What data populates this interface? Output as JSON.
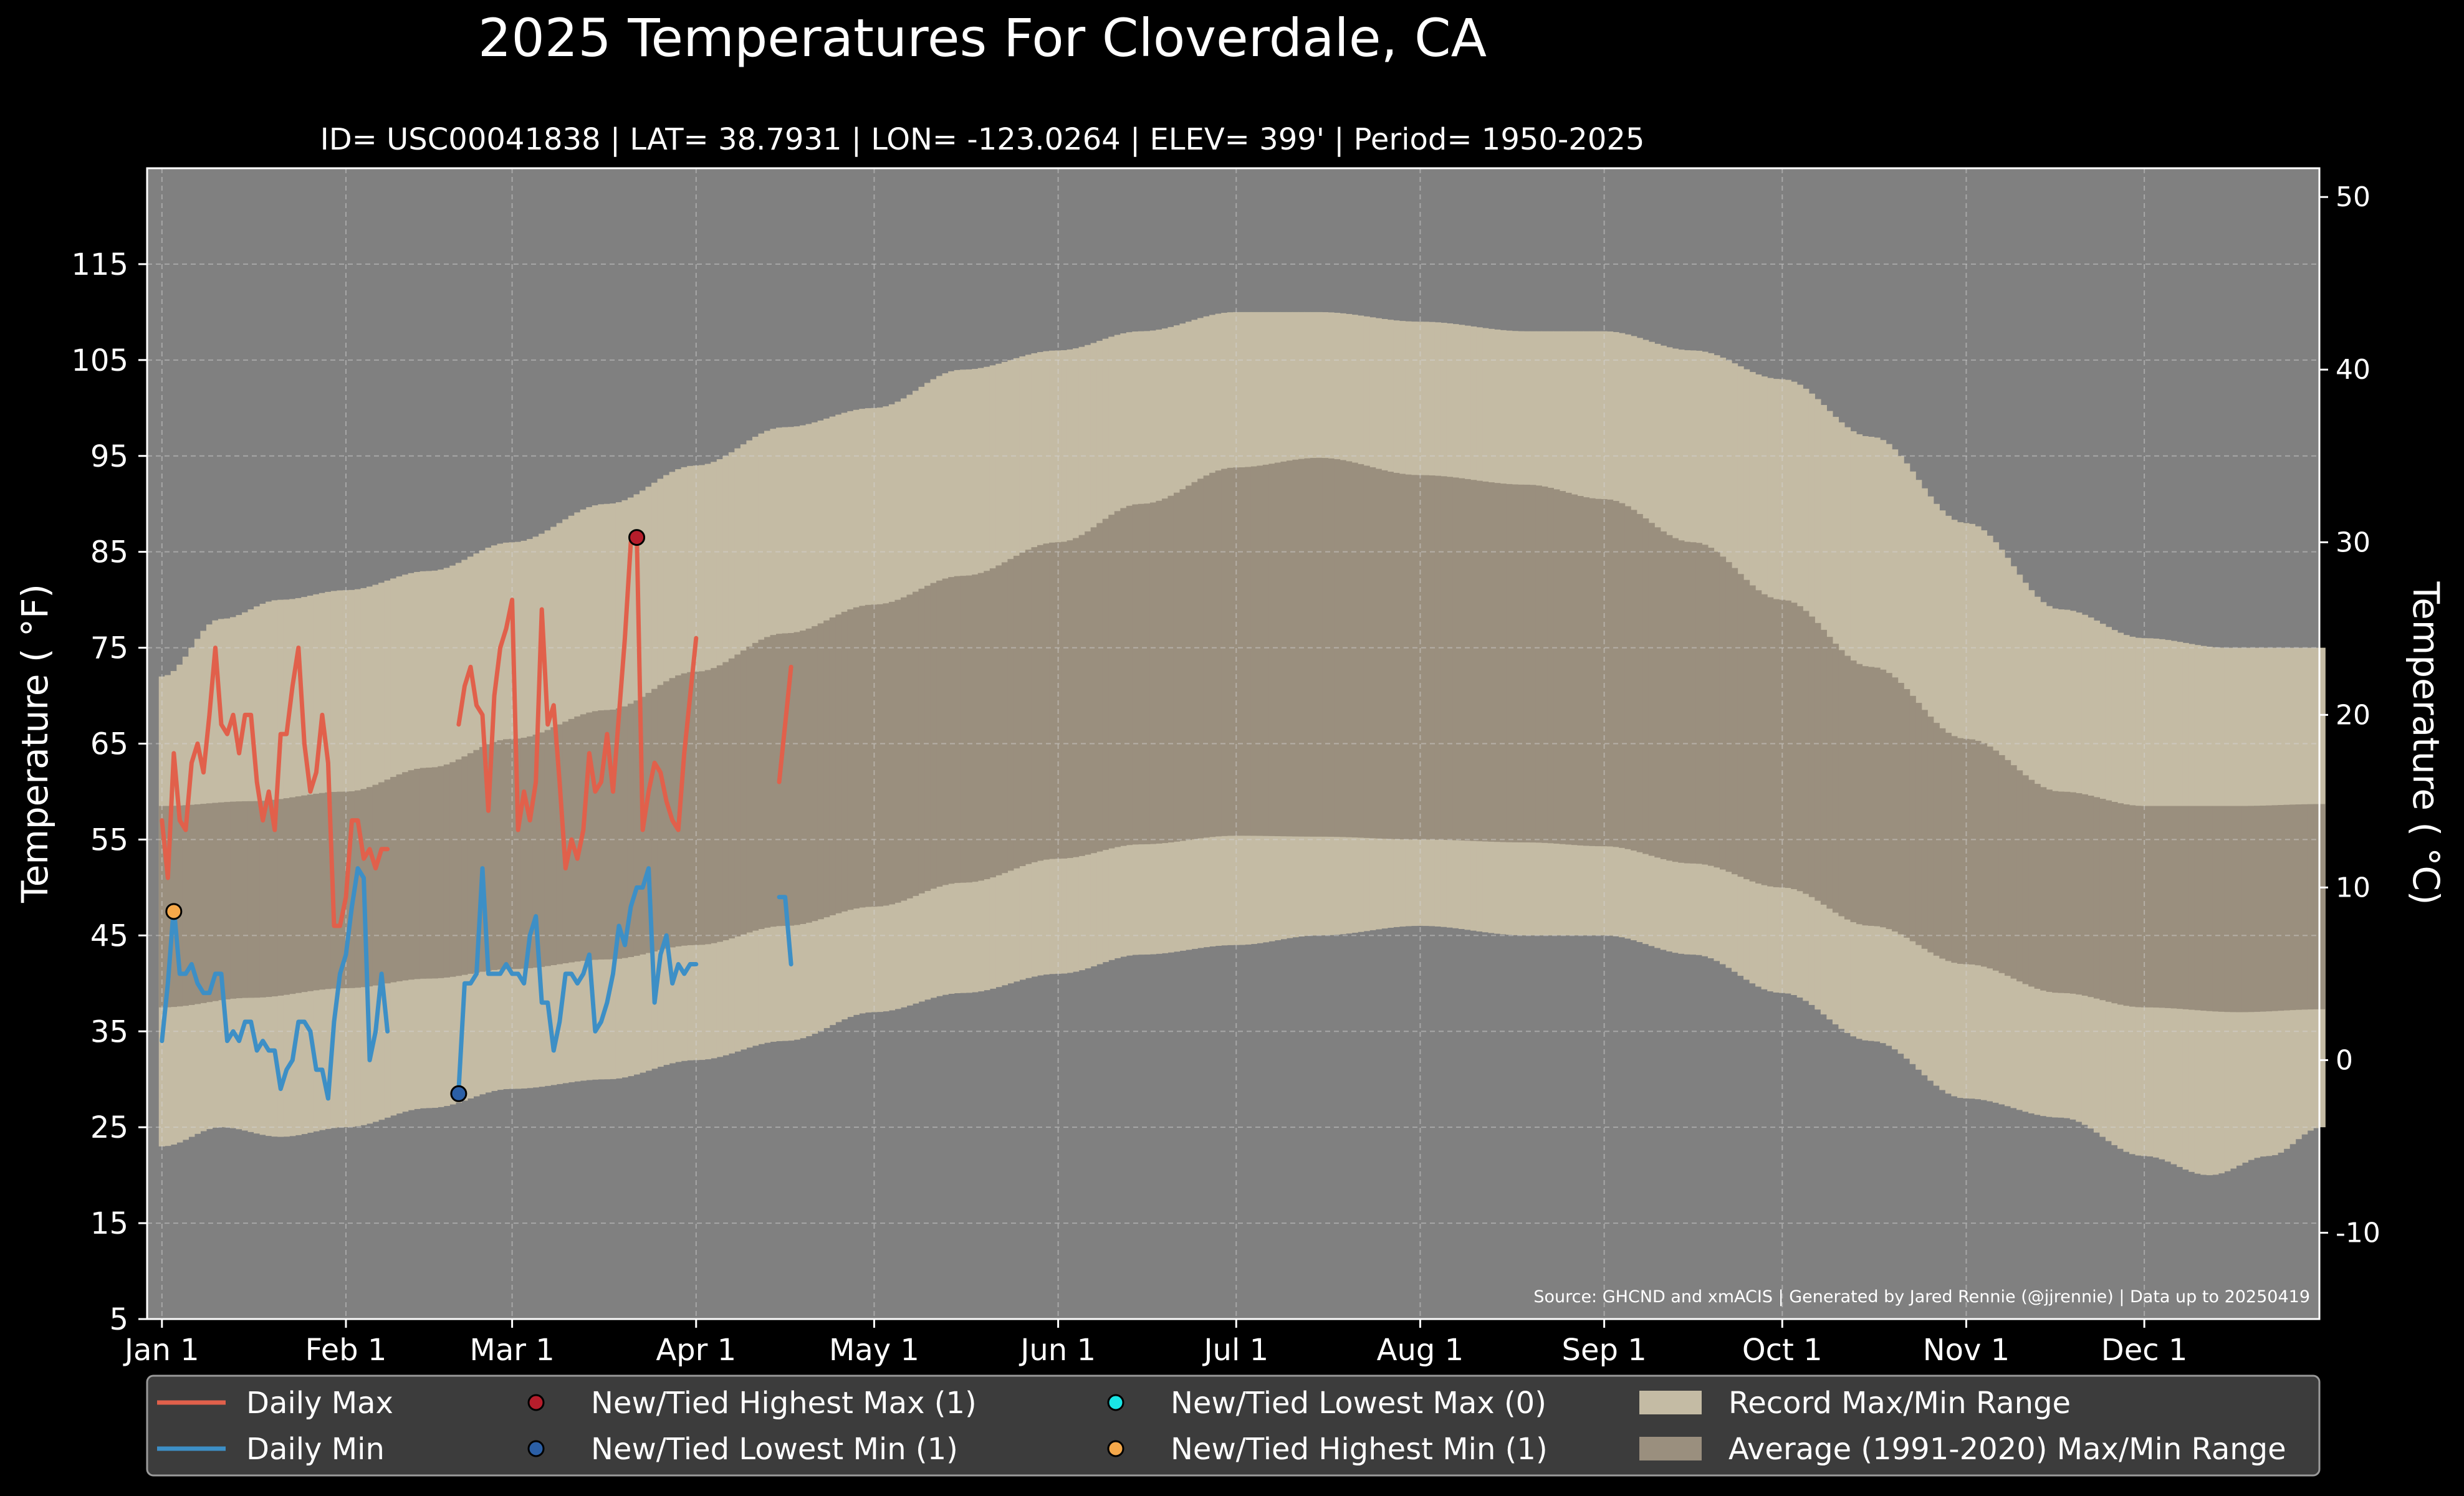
{
  "chart_data": {
    "type": "line",
    "title": "2025 Temperatures For Cloverdale, CA",
    "subtitle": "ID= USC00041838 | LAT= 38.7931 | LON= -123.0264 | ELEV= 399' | Period= 1950-2025",
    "ylabel": "Temperature ( °F)",
    "ylabel_right": "Temperature ( °C)",
    "source": "Source: GHCND and xmACIS | Generated by Jared Rennie (@jjrennie) | Data up to 20250419",
    "ylim": [
      5,
      125
    ],
    "y_ticks": [
      5,
      15,
      25,
      35,
      45,
      55,
      65,
      75,
      85,
      95,
      105,
      115
    ],
    "y_ticks_right": [
      -10,
      0,
      10,
      20,
      30,
      40,
      50
    ],
    "xlim": [
      -2.5,
      363.5
    ],
    "month_ticks": [
      {
        "label": "Jan 1",
        "day": 0
      },
      {
        "label": "Feb 1",
        "day": 31
      },
      {
        "label": "Mar 1",
        "day": 59
      },
      {
        "label": "Apr 1",
        "day": 90
      },
      {
        "label": "May 1",
        "day": 120
      },
      {
        "label": "Jun 1",
        "day": 151
      },
      {
        "label": "Jul 1",
        "day": 181
      },
      {
        "label": "Aug 1",
        "day": 212
      },
      {
        "label": "Sep 1",
        "day": 243
      },
      {
        "label": "Oct 1",
        "day": 273
      },
      {
        "label": "Nov 1",
        "day": 304
      },
      {
        "label": "Dec 1",
        "day": 334
      }
    ],
    "grid": true,
    "legend_position": "bottom",
    "record_max_knots": [
      [
        0,
        72
      ],
      [
        10,
        78
      ],
      [
        20,
        80
      ],
      [
        31,
        81
      ],
      [
        45,
        83
      ],
      [
        59,
        86
      ],
      [
        75,
        90
      ],
      [
        90,
        94
      ],
      [
        105,
        98
      ],
      [
        120,
        100
      ],
      [
        135,
        104
      ],
      [
        151,
        106
      ],
      [
        165,
        108
      ],
      [
        181,
        110
      ],
      [
        195,
        110
      ],
      [
        212,
        109
      ],
      [
        230,
        108
      ],
      [
        243,
        108
      ],
      [
        258,
        106
      ],
      [
        273,
        103
      ],
      [
        288,
        97
      ],
      [
        304,
        88
      ],
      [
        320,
        79
      ],
      [
        334,
        76
      ],
      [
        348,
        75
      ],
      [
        364,
        75
      ]
    ],
    "record_min_knots": [
      [
        0,
        23
      ],
      [
        10,
        25
      ],
      [
        20,
        24
      ],
      [
        31,
        25
      ],
      [
        45,
        27
      ],
      [
        59,
        29
      ],
      [
        75,
        30
      ],
      [
        90,
        32
      ],
      [
        105,
        34
      ],
      [
        120,
        37
      ],
      [
        135,
        39
      ],
      [
        151,
        41
      ],
      [
        165,
        43
      ],
      [
        181,
        44
      ],
      [
        195,
        45
      ],
      [
        212,
        46
      ],
      [
        230,
        45
      ],
      [
        243,
        45
      ],
      [
        258,
        43
      ],
      [
        273,
        39
      ],
      [
        288,
        34
      ],
      [
        304,
        28
      ],
      [
        320,
        26
      ],
      [
        334,
        22
      ],
      [
        345,
        20
      ],
      [
        355,
        22
      ],
      [
        364,
        25
      ]
    ],
    "average_max_knots": [
      [
        0,
        58.5
      ],
      [
        15,
        59
      ],
      [
        31,
        60
      ],
      [
        45,
        62.5
      ],
      [
        59,
        65.5
      ],
      [
        75,
        68.5
      ],
      [
        90,
        72.5
      ],
      [
        105,
        76.5
      ],
      [
        120,
        79.5
      ],
      [
        135,
        82.5
      ],
      [
        151,
        86
      ],
      [
        165,
        90
      ],
      [
        181,
        93.8
      ],
      [
        195,
        94.8
      ],
      [
        212,
        93
      ],
      [
        230,
        92
      ],
      [
        243,
        90.5
      ],
      [
        258,
        86
      ],
      [
        273,
        80
      ],
      [
        288,
        73
      ],
      [
        304,
        65.5
      ],
      [
        320,
        60
      ],
      [
        334,
        58.5
      ],
      [
        350,
        58.5
      ],
      [
        364,
        58.7
      ]
    ],
    "average_min_knots": [
      [
        0,
        37.5
      ],
      [
        15,
        38.5
      ],
      [
        31,
        39.5
      ],
      [
        45,
        40.5
      ],
      [
        59,
        41.5
      ],
      [
        75,
        42.5
      ],
      [
        90,
        44
      ],
      [
        105,
        46
      ],
      [
        120,
        48
      ],
      [
        135,
        50.5
      ],
      [
        151,
        53
      ],
      [
        165,
        54.5
      ],
      [
        181,
        55.4
      ],
      [
        195,
        55.3
      ],
      [
        212,
        55
      ],
      [
        230,
        54.7
      ],
      [
        243,
        54.3
      ],
      [
        258,
        52.5
      ],
      [
        273,
        50
      ],
      [
        288,
        46
      ],
      [
        304,
        42
      ],
      [
        320,
        39
      ],
      [
        334,
        37.5
      ],
      [
        350,
        37
      ],
      [
        364,
        37.3
      ]
    ],
    "series": [
      {
        "name": "Daily Max",
        "color": "#e1604b",
        "segments": [
          [
            [
              0,
              57
            ],
            [
              1,
              51
            ],
            [
              2,
              64
            ],
            [
              3,
              57
            ],
            [
              4,
              56
            ],
            [
              5,
              63
            ],
            [
              6,
              65
            ],
            [
              7,
              62
            ],
            [
              8,
              68
            ],
            [
              9,
              75
            ],
            [
              10,
              67
            ],
            [
              11,
              66
            ],
            [
              12,
              68
            ],
            [
              13,
              64
            ],
            [
              14,
              68
            ],
            [
              15,
              68
            ],
            [
              16,
              61
            ],
            [
              17,
              57
            ],
            [
              18,
              60
            ],
            [
              19,
              56
            ],
            [
              20,
              66
            ],
            [
              21,
              66
            ],
            [
              22,
              71
            ],
            [
              23,
              75
            ],
            [
              24,
              65
            ],
            [
              25,
              60
            ],
            [
              26,
              62
            ],
            [
              27,
              68
            ],
            [
              28,
              63
            ],
            [
              29,
              46
            ],
            [
              30,
              46
            ],
            [
              31,
              49
            ],
            [
              32,
              57
            ],
            [
              33,
              57
            ],
            [
              34,
              53
            ],
            [
              35,
              54
            ],
            [
              36,
              52
            ],
            [
              37,
              54
            ],
            [
              38,
              54
            ]
          ],
          [
            [
              50,
              67
            ],
            [
              51,
              71
            ],
            [
              52,
              73
            ],
            [
              53,
              69
            ],
            [
              54,
              68
            ],
            [
              55,
              58
            ],
            [
              56,
              70
            ],
            [
              57,
              75
            ],
            [
              58,
              77
            ],
            [
              59,
              80
            ],
            [
              60,
              56
            ],
            [
              61,
              60
            ],
            [
              62,
              57
            ],
            [
              63,
              61
            ],
            [
              64,
              79
            ],
            [
              65,
              67
            ],
            [
              66,
              69
            ],
            [
              67,
              61
            ],
            [
              68,
              52
            ],
            [
              69,
              55
            ],
            [
              70,
              53
            ],
            [
              71,
              56
            ],
            [
              72,
              64
            ],
            [
              73,
              60
            ],
            [
              74,
              61
            ],
            [
              75,
              66
            ],
            [
              76,
              60
            ],
            [
              77,
              68
            ],
            [
              78,
              76
            ],
            [
              79,
              86
            ],
            [
              80,
              87
            ],
            [
              81,
              56
            ],
            [
              82,
              60
            ],
            [
              83,
              63
            ],
            [
              84,
              62
            ],
            [
              85,
              59
            ],
            [
              86,
              57
            ],
            [
              87,
              56
            ],
            [
              88,
              64
            ],
            [
              89,
              70
            ],
            [
              90,
              76
            ]
          ],
          [
            [
              104,
              61
            ],
            [
              105,
              67
            ],
            [
              106,
              73
            ]
          ]
        ]
      },
      {
        "name": "Daily Min",
        "color": "#3d8fc6",
        "segments": [
          [
            [
              0,
              34
            ],
            [
              1,
              40
            ],
            [
              2,
              48
            ],
            [
              3,
              41
            ],
            [
              4,
              41
            ],
            [
              5,
              42
            ],
            [
              6,
              40
            ],
            [
              7,
              39
            ],
            [
              8,
              39
            ],
            [
              9,
              41
            ],
            [
              10,
              41
            ],
            [
              11,
              34
            ],
            [
              12,
              35
            ],
            [
              13,
              34
            ],
            [
              14,
              36
            ],
            [
              15,
              36
            ],
            [
              16,
              33
            ],
            [
              17,
              34
            ],
            [
              18,
              33
            ],
            [
              19,
              33
            ],
            [
              20,
              29
            ],
            [
              21,
              31
            ],
            [
              22,
              32
            ],
            [
              23,
              36
            ],
            [
              24,
              36
            ],
            [
              25,
              35
            ],
            [
              26,
              31
            ],
            [
              27,
              31
            ],
            [
              28,
              28
            ],
            [
              29,
              36
            ],
            [
              30,
              41
            ],
            [
              31,
              43
            ],
            [
              32,
              48
            ],
            [
              33,
              52
            ],
            [
              34,
              51
            ],
            [
              35,
              32
            ],
            [
              36,
              35
            ],
            [
              37,
              41
            ],
            [
              38,
              35
            ]
          ],
          [
            [
              50,
              29
            ],
            [
              51,
              40
            ],
            [
              52,
              40
            ],
            [
              53,
              41
            ],
            [
              54,
              52
            ],
            [
              55,
              41
            ],
            [
              56,
              41
            ],
            [
              57,
              41
            ],
            [
              58,
              42
            ],
            [
              59,
              41
            ],
            [
              60,
              41
            ],
            [
              61,
              40
            ],
            [
              62,
              45
            ],
            [
              63,
              47
            ],
            [
              64,
              38
            ],
            [
              65,
              38
            ],
            [
              66,
              33
            ],
            [
              67,
              36
            ],
            [
              68,
              41
            ],
            [
              69,
              41
            ],
            [
              70,
              40
            ],
            [
              71,
              41
            ],
            [
              72,
              43
            ],
            [
              73,
              35
            ],
            [
              74,
              36
            ],
            [
              75,
              38
            ],
            [
              76,
              41
            ],
            [
              77,
              46
            ],
            [
              78,
              44
            ],
            [
              79,
              48
            ],
            [
              80,
              50
            ],
            [
              81,
              50
            ],
            [
              82,
              52
            ],
            [
              83,
              38
            ],
            [
              84,
              43
            ],
            [
              85,
              45
            ],
            [
              86,
              40
            ],
            [
              87,
              42
            ],
            [
              88,
              41
            ],
            [
              89,
              42
            ],
            [
              90,
              42
            ]
          ],
          [
            [
              104,
              49
            ],
            [
              105,
              49
            ],
            [
              106,
              42
            ]
          ]
        ]
      }
    ],
    "record_points": [
      {
        "name": "New/Tied Highest Max (1)",
        "day": 80,
        "value": 86.5,
        "color": "#b61d2b"
      },
      {
        "name": "New/Tied Lowest Min (1)",
        "day": 50,
        "value": 28.5,
        "color": "#2b5fa6"
      },
      {
        "name": "New/Tied Highest Min (1)",
        "day": 2,
        "value": 47.5,
        "color": "#f5a84a"
      }
    ],
    "legend": [
      {
        "kind": "line",
        "label": "Daily Max",
        "color": "#e1604b"
      },
      {
        "kind": "line",
        "label": "Daily Min",
        "color": "#3d8fc6"
      },
      {
        "kind": "dot",
        "label": "New/Tied Highest Max (1)",
        "color": "#b61d2b"
      },
      {
        "kind": "dot",
        "label": "New/Tied Lowest Min (1)",
        "color": "#2b5fa6"
      },
      {
        "kind": "dot",
        "label": "New/Tied Lowest Max (0)",
        "color": "#19e6e6"
      },
      {
        "kind": "dot",
        "label": "New/Tied Highest Min (1)",
        "color": "#f5a84a"
      },
      {
        "kind": "patch",
        "label": "Record Max/Min Range",
        "color": "#c4bba4"
      },
      {
        "kind": "patch",
        "label": "Average (1991-2020) Max/Min Range",
        "color": "#9a8f7e"
      }
    ],
    "colors": {
      "background": "#000000",
      "plot_background": "#808080",
      "record_range": "#c4bba4",
      "average_range": "#9a8f7e"
    }
  }
}
